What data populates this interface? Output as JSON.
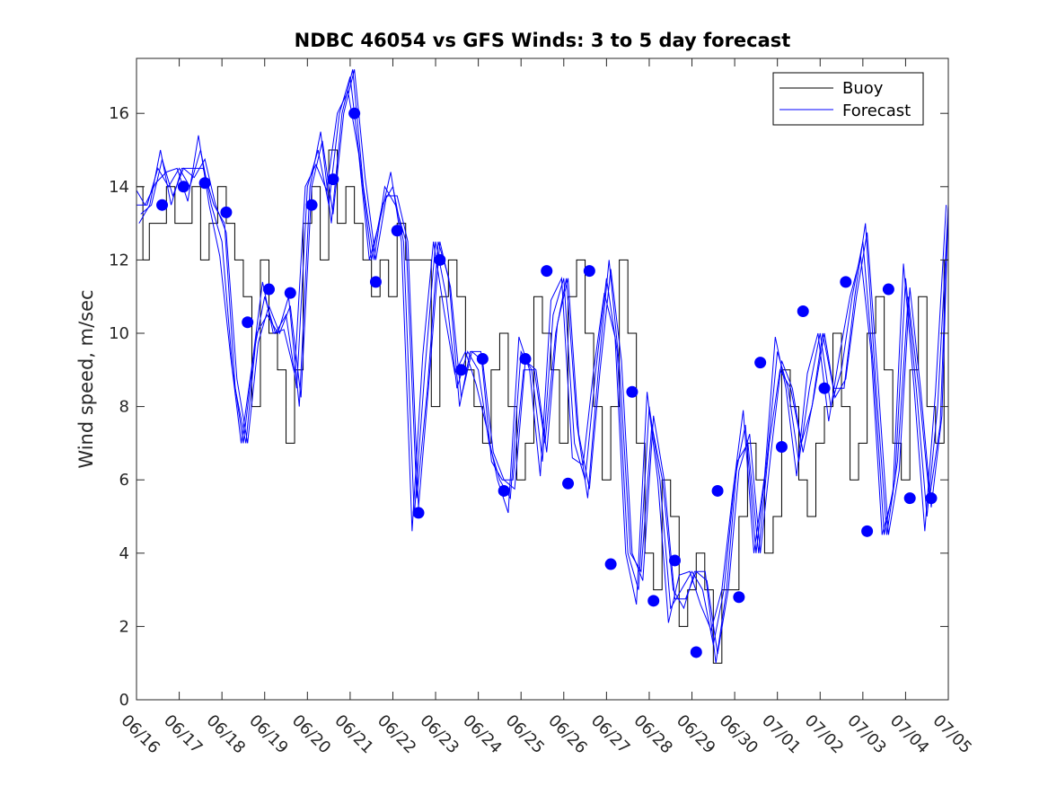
{
  "chart_data": {
    "type": "line",
    "title": "NDBC 46054 vs GFS Winds: 3 to 5 day forecast",
    "xlabel": "",
    "ylabel": "Wind speed, m/sec",
    "xlim_day": [
      0,
      19
    ],
    "ylim": [
      0,
      17.5
    ],
    "yticks": [
      0,
      2,
      4,
      6,
      8,
      10,
      12,
      14,
      16
    ],
    "xtick_labels": [
      "06/16",
      "06/17",
      "06/18",
      "06/19",
      "06/20",
      "06/21",
      "06/22",
      "06/23",
      "06/24",
      "06/25",
      "06/26",
      "06/27",
      "06/28",
      "06/29",
      "06/30",
      "07/01",
      "07/02",
      "07/03",
      "07/04",
      "07/05"
    ],
    "legend": {
      "position": "top-right",
      "entries": [
        "Buoy",
        "Forecast"
      ]
    },
    "colors": {
      "buoy": "#000000",
      "forecast": "#0000ff",
      "markers": "#0000ff"
    },
    "series": [
      {
        "name": "Buoy",
        "style": "stepped line, black",
        "x_day": [
          0.0,
          0.15,
          0.3,
          0.5,
          0.7,
          0.9,
          1.1,
          1.3,
          1.5,
          1.7,
          1.9,
          2.1,
          2.3,
          2.5,
          2.7,
          2.9,
          3.1,
          3.3,
          3.5,
          3.7,
          3.9,
          4.1,
          4.3,
          4.5,
          4.7,
          4.9,
          5.1,
          5.3,
          5.5,
          5.7,
          5.9,
          6.1,
          6.3,
          6.5,
          6.7,
          6.9,
          7.1,
          7.3,
          7.5,
          7.7,
          7.9,
          8.1,
          8.3,
          8.5,
          8.7,
          8.9,
          9.1,
          9.3,
          9.5,
          9.7,
          9.9,
          10.1,
          10.3,
          10.5,
          10.7,
          10.9,
          11.1,
          11.3,
          11.5,
          11.7,
          11.9,
          12.1,
          12.3,
          12.5,
          12.7,
          12.9,
          13.1,
          13.3,
          13.5,
          13.7,
          13.9,
          14.1,
          14.3,
          14.5,
          14.7,
          14.9,
          15.1,
          15.3,
          15.5,
          15.7,
          15.9,
          16.1,
          16.3,
          16.5,
          16.7,
          16.9,
          17.1,
          17.3,
          17.5,
          17.7,
          17.9,
          18.1,
          18.3,
          18.5,
          18.7,
          18.9
        ],
        "y": [
          14,
          12,
          13,
          13,
          14,
          13,
          13,
          14,
          12,
          13,
          14,
          13,
          12,
          11,
          8,
          12,
          10,
          9,
          7,
          9,
          13,
          14,
          12,
          15,
          13,
          14,
          13,
          12,
          11,
          12,
          11,
          13,
          12,
          12,
          12,
          8,
          11,
          12,
          11,
          9,
          8,
          7,
          9,
          10,
          8,
          6,
          7,
          11,
          10,
          9,
          7,
          11,
          12,
          10,
          8,
          6,
          8,
          12,
          10,
          7,
          4,
          3,
          6,
          5,
          2,
          3,
          4,
          3,
          1,
          3,
          3,
          5,
          7,
          6,
          4,
          5,
          9,
          8,
          6,
          5,
          7,
          8,
          10,
          8,
          6,
          7,
          10,
          11,
          9,
          7,
          6,
          9,
          11,
          8,
          7,
          12
        ]
      },
      {
        "name": "Forecast",
        "style": "multiple thin blue lines (overlapping forecast runs)",
        "x_day": [
          0.0,
          0.25,
          0.5,
          0.75,
          1.0,
          1.25,
          1.5,
          1.75,
          2.0,
          2.25,
          2.5,
          2.75,
          3.0,
          3.25,
          3.5,
          3.75,
          4.0,
          4.25,
          4.5,
          4.75,
          5.0,
          5.25,
          5.5,
          5.75,
          6.0,
          6.25,
          6.5,
          6.75,
          7.0,
          7.25,
          7.5,
          7.75,
          8.0,
          8.25,
          8.5,
          8.75,
          9.0,
          9.25,
          9.5,
          9.75,
          10.0,
          10.25,
          10.5,
          10.75,
          11.0,
          11.25,
          11.5,
          11.75,
          12.0,
          12.25,
          12.5,
          12.75,
          13.0,
          13.25,
          13.5,
          13.75,
          14.0,
          14.25,
          14.5,
          14.75,
          15.0,
          15.25,
          15.5,
          15.75,
          16.0,
          16.25,
          16.5,
          16.75,
          17.0,
          17.25,
          17.5,
          17.75,
          18.0,
          18.25,
          18.5,
          18.75,
          19.0
        ],
        "y": [
          13.5,
          13.5,
          14.5,
          14.0,
          14.5,
          14.0,
          15.0,
          13.5,
          12.5,
          9.0,
          7.0,
          9.5,
          11.0,
          10.0,
          10.5,
          8.5,
          14.0,
          15.0,
          13.5,
          16.0,
          17.0,
          14.5,
          12.0,
          13.5,
          14.0,
          12.5,
          5.0,
          9.0,
          12.5,
          11.0,
          8.5,
          9.5,
          9.0,
          7.0,
          6.0,
          5.5,
          9.5,
          9.0,
          6.5,
          10.5,
          11.5,
          7.0,
          6.0,
          9.0,
          11.5,
          9.5,
          4.0,
          3.0,
          8.0,
          6.0,
          2.5,
          3.0,
          3.5,
          3.0,
          1.5,
          3.0,
          6.0,
          7.5,
          4.0,
          6.5,
          9.5,
          8.5,
          6.5,
          8.5,
          10.0,
          8.0,
          9.0,
          11.0,
          12.5,
          9.0,
          4.5,
          6.0,
          11.5,
          8.5,
          5.0,
          8.0,
          13.5
        ]
      },
      {
        "name": "",
        "style": "blue filled circle markers",
        "x_day": [
          0.6,
          1.1,
          1.6,
          2.1,
          2.6,
          3.1,
          3.6,
          4.1,
          4.6,
          5.1,
          5.6,
          6.1,
          6.6,
          7.1,
          7.6,
          8.1,
          8.6,
          9.1,
          9.6,
          10.1,
          10.6,
          11.1,
          11.6,
          12.1,
          12.6,
          13.1,
          13.6,
          14.1,
          14.6,
          15.1,
          15.6,
          16.1,
          16.6,
          17.1,
          17.6,
          18.1,
          18.6
        ],
        "y": [
          13.5,
          14.0,
          14.1,
          13.3,
          10.3,
          11.2,
          11.1,
          13.5,
          14.2,
          16.0,
          11.4,
          12.8,
          5.1,
          12.0,
          9.0,
          9.3,
          5.7,
          9.3,
          11.7,
          5.9,
          11.7,
          3.7,
          8.4,
          2.7,
          3.8,
          1.3,
          5.7,
          2.8,
          9.2,
          6.9,
          10.6,
          8.5,
          11.4,
          4.6,
          11.2,
          5.5,
          5.5
        ]
      }
    ]
  }
}
